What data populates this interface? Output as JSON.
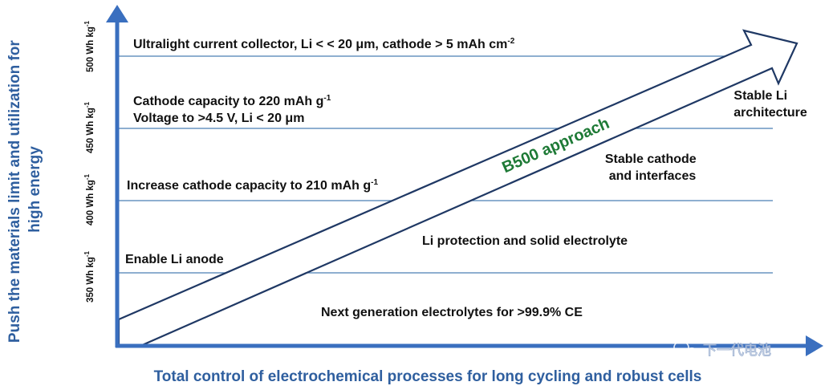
{
  "y_axis_title": [
    "Push the materials limit and utilization for",
    "high energy"
  ],
  "x_axis_title": "Total control of electrochemical processes for long cycling and robust cells",
  "energy_levels": [
    {
      "label": "500 Wh kg",
      "sup": "-1"
    },
    {
      "label": "450 Wh kg",
      "sup": "-1"
    },
    {
      "label": "400 Wh kg",
      "sup": "-1"
    },
    {
      "label": "350 Wh kg",
      "sup": "-1"
    }
  ],
  "left_text": {
    "ultralight": {
      "text": "Ultralight current collector, Li < < 20 μm, cathode > 5  mAh cm",
      "sup": "-2"
    },
    "cathode220": {
      "text": "Cathode capacity to 220 mAh g",
      "sup": "-1"
    },
    "voltage": "Voltage to >4.5 V, Li < 20 μm",
    "cathode210": {
      "text": "Increase cathode capacity to 210 mAh g",
      "sup": "-1"
    },
    "enable_li": "Enable Li anode"
  },
  "right_text": {
    "stable_li": [
      "Stable Li",
      "architecture"
    ],
    "stable_cathode": [
      "Stable cathode",
      "and interfaces"
    ],
    "li_protection": "Li protection and solid electrolyte",
    "next_gen": "Next generation electrolytes for >99.9% CE"
  },
  "arrow_label": "B500 approach",
  "watermark": "下一代电池",
  "colors": {
    "axis": "#3a6fbf",
    "axis_title": "#2f5f9f",
    "gridline": "#4a7fb5",
    "arrow_outline": "#1f3864",
    "arrow_label": "#1e7a36",
    "text": "#111111"
  }
}
